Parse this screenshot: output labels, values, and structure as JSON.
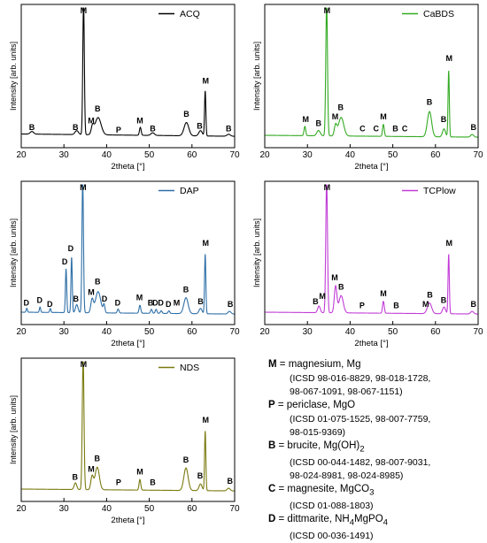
{
  "chart_data": [
    {
      "type": "line",
      "title": "",
      "legend": "ACQ",
      "legend_position": "top-right",
      "color": "#000000",
      "xlabel": "2theta [°]",
      "ylabel": "Intensity [arb. units]",
      "xlim": [
        20,
        70
      ],
      "xticks": [
        20,
        30,
        40,
        50,
        60,
        70
      ],
      "grid": false,
      "series": [
        {
          "name": "ACQ",
          "baseline": 0.05,
          "peaks": [
            {
              "x": 22.5,
              "y": 0.02,
              "w": 0.4
            },
            {
              "x": 33.0,
              "y": 0.03,
              "w": 0.4
            },
            {
              "x": 34.6,
              "y": 1.0,
              "w": 0.18
            },
            {
              "x": 36.7,
              "y": 0.06,
              "w": 0.3
            },
            {
              "x": 38.0,
              "y": 0.13,
              "w": 0.7
            },
            {
              "x": 47.9,
              "y": 0.06,
              "w": 0.2
            },
            {
              "x": 50.8,
              "y": 0.02,
              "w": 0.4
            },
            {
              "x": 58.7,
              "y": 0.1,
              "w": 0.55
            },
            {
              "x": 62.0,
              "y": 0.04,
              "w": 0.4
            },
            {
              "x": 63.1,
              "y": 0.34,
              "w": 0.15
            },
            {
              "x": 68.6,
              "y": 0.015,
              "w": 0.4
            }
          ]
        }
      ],
      "annotations": [
        {
          "text": "B",
          "x": 22.5,
          "y": 0.06
        },
        {
          "text": "B",
          "x": 32.7,
          "y": 0.06
        },
        {
          "text": "M",
          "x": 34.6,
          "y": 1.0
        },
        {
          "text": "M",
          "x": 36.4,
          "y": 0.11
        },
        {
          "text": "B",
          "x": 37.9,
          "y": 0.2
        },
        {
          "text": "P",
          "x": 42.8,
          "y": 0.04
        },
        {
          "text": "M",
          "x": 47.8,
          "y": 0.11
        },
        {
          "text": "B",
          "x": 50.8,
          "y": 0.05
        },
        {
          "text": "B",
          "x": 58.7,
          "y": 0.16
        },
        {
          "text": "B",
          "x": 61.8,
          "y": 0.07
        },
        {
          "text": "M",
          "x": 63.2,
          "y": 0.41
        },
        {
          "text": "B",
          "x": 68.6,
          "y": 0.05
        }
      ]
    },
    {
      "type": "line",
      "title": "",
      "legend": "CaBDS",
      "legend_position": "top-right",
      "color": "#33aa22",
      "xlabel": "2theta [°]",
      "ylabel": "Intensity [arb. units]",
      "xlim": [
        20,
        70
      ],
      "xticks": [
        20,
        30,
        40,
        50,
        60,
        70
      ],
      "grid": false,
      "series": [
        {
          "name": "CaBDS",
          "baseline": 0.04,
          "peaks": [
            {
              "x": 29.4,
              "y": 0.07,
              "w": 0.2
            },
            {
              "x": 32.6,
              "y": 0.04,
              "w": 0.4
            },
            {
              "x": 34.5,
              "y": 1.0,
              "w": 0.2
            },
            {
              "x": 36.6,
              "y": 0.08,
              "w": 0.3
            },
            {
              "x": 37.9,
              "y": 0.14,
              "w": 0.6
            },
            {
              "x": 47.8,
              "y": 0.09,
              "w": 0.2
            },
            {
              "x": 58.6,
              "y": 0.19,
              "w": 0.5
            },
            {
              "x": 62.0,
              "y": 0.06,
              "w": 0.35
            },
            {
              "x": 63.1,
              "y": 0.5,
              "w": 0.15
            },
            {
              "x": 68.6,
              "y": 0.02,
              "w": 0.35
            }
          ]
        }
      ],
      "annotations": [
        {
          "text": "M",
          "x": 29.6,
          "y": 0.12
        },
        {
          "text": "B",
          "x": 32.6,
          "y": 0.09
        },
        {
          "text": "M",
          "x": 34.6,
          "y": 1.0
        },
        {
          "text": "M",
          "x": 36.5,
          "y": 0.14
        },
        {
          "text": "B",
          "x": 37.8,
          "y": 0.21
        },
        {
          "text": "C",
          "x": 42.9,
          "y": 0.05
        },
        {
          "text": "C",
          "x": 46.1,
          "y": 0.05
        },
        {
          "text": "M",
          "x": 47.8,
          "y": 0.14
        },
        {
          "text": "B",
          "x": 50.6,
          "y": 0.05
        },
        {
          "text": "C",
          "x": 52.8,
          "y": 0.05
        },
        {
          "text": "B",
          "x": 58.6,
          "y": 0.25
        },
        {
          "text": "B",
          "x": 61.9,
          "y": 0.12
        },
        {
          "text": "M",
          "x": 63.2,
          "y": 0.58
        },
        {
          "text": "B",
          "x": 68.9,
          "y": 0.06
        }
      ]
    },
    {
      "type": "line",
      "title": "",
      "legend": "DAP",
      "legend_position": "top-right",
      "color": "#2e6fa7",
      "xlabel": "2theta [°]",
      "ylabel": "Intensity [arb. units]",
      "xlim": [
        20,
        70
      ],
      "xticks": [
        20,
        30,
        40,
        50,
        60,
        70
      ],
      "grid": false,
      "series": [
        {
          "name": "DAP",
          "baseline": 0.04,
          "peaks": [
            {
              "x": 21.3,
              "y": 0.03,
              "w": 0.15
            },
            {
              "x": 24.4,
              "y": 0.04,
              "w": 0.15
            },
            {
              "x": 26.8,
              "y": 0.03,
              "w": 0.15
            },
            {
              "x": 30.5,
              "y": 0.33,
              "w": 0.15
            },
            {
              "x": 31.8,
              "y": 0.42,
              "w": 0.15
            },
            {
              "x": 33.0,
              "y": 0.06,
              "w": 0.3
            },
            {
              "x": 34.4,
              "y": 1.0,
              "w": 0.18
            },
            {
              "x": 36.6,
              "y": 0.1,
              "w": 0.3
            },
            {
              "x": 38.0,
              "y": 0.16,
              "w": 0.6
            },
            {
              "x": 39.4,
              "y": 0.06,
              "w": 0.2
            },
            {
              "x": 42.7,
              "y": 0.03,
              "w": 0.2
            },
            {
              "x": 47.8,
              "y": 0.06,
              "w": 0.2
            },
            {
              "x": 50.5,
              "y": 0.03,
              "w": 0.2
            },
            {
              "x": 51.6,
              "y": 0.03,
              "w": 0.2
            },
            {
              "x": 52.8,
              "y": 0.02,
              "w": 0.2
            },
            {
              "x": 54.6,
              "y": 0.02,
              "w": 0.2
            },
            {
              "x": 58.6,
              "y": 0.12,
              "w": 0.5
            },
            {
              "x": 62.0,
              "y": 0.04,
              "w": 0.35
            },
            {
              "x": 63.1,
              "y": 0.45,
              "w": 0.15
            },
            {
              "x": 68.8,
              "y": 0.02,
              "w": 0.35
            }
          ]
        }
      ],
      "annotations": [
        {
          "text": "D",
          "x": 21.2,
          "y": 0.07
        },
        {
          "text": "D",
          "x": 24.3,
          "y": 0.09
        },
        {
          "text": "D",
          "x": 26.7,
          "y": 0.06
        },
        {
          "text": "D",
          "x": 30.2,
          "y": 0.38
        },
        {
          "text": "D",
          "x": 31.6,
          "y": 0.48
        },
        {
          "text": "B",
          "x": 32.8,
          "y": 0.1
        },
        {
          "text": "M",
          "x": 34.5,
          "y": 1.0
        },
        {
          "text": "M",
          "x": 36.4,
          "y": 0.15
        },
        {
          "text": "B",
          "x": 37.9,
          "y": 0.23
        },
        {
          "text": "D",
          "x": 39.5,
          "y": 0.1
        },
        {
          "text": "D",
          "x": 42.6,
          "y": 0.07
        },
        {
          "text": "M",
          "x": 47.7,
          "y": 0.11
        },
        {
          "text": "B",
          "x": 50.3,
          "y": 0.07
        },
        {
          "text": "D",
          "x": 51.4,
          "y": 0.07
        },
        {
          "text": "D",
          "x": 52.7,
          "y": 0.07
        },
        {
          "text": "D",
          "x": 54.5,
          "y": 0.06
        },
        {
          "text": "M",
          "x": 56.4,
          "y": 0.07
        },
        {
          "text": "B",
          "x": 58.6,
          "y": 0.17
        },
        {
          "text": "B",
          "x": 62.0,
          "y": 0.08
        },
        {
          "text": "M",
          "x": 63.2,
          "y": 0.52
        },
        {
          "text": "B",
          "x": 69.0,
          "y": 0.06
        }
      ]
    },
    {
      "type": "line",
      "title": "",
      "legend": "TCPlow",
      "legend_position": "top-right",
      "color": "#c13cd6",
      "xlabel": "2theta [°]",
      "ylabel": "Intensity [arb. units]",
      "xlim": [
        20,
        70
      ],
      "xticks": [
        20,
        30,
        40,
        50,
        60,
        70
      ],
      "grid": false,
      "series": [
        {
          "name": "TCPlow",
          "baseline": 0.04,
          "peaks": [
            {
              "x": 32.7,
              "y": 0.05,
              "w": 0.3
            },
            {
              "x": 34.5,
              "y": 1.0,
              "w": 0.2
            },
            {
              "x": 36.6,
              "y": 0.2,
              "w": 0.3
            },
            {
              "x": 37.9,
              "y": 0.13,
              "w": 0.5
            },
            {
              "x": 47.8,
              "y": 0.09,
              "w": 0.2
            },
            {
              "x": 58.6,
              "y": 0.08,
              "w": 0.5
            },
            {
              "x": 62.0,
              "y": 0.05,
              "w": 0.35
            },
            {
              "x": 63.1,
              "y": 0.45,
              "w": 0.15
            },
            {
              "x": 68.6,
              "y": 0.02,
              "w": 0.35
            }
          ]
        }
      ],
      "annotations": [
        {
          "text": "B",
          "x": 31.9,
          "y": 0.08
        },
        {
          "text": "M",
          "x": 33.5,
          "y": 0.12
        },
        {
          "text": "M",
          "x": 34.6,
          "y": 1.0
        },
        {
          "text": "M",
          "x": 36.4,
          "y": 0.26
        },
        {
          "text": "B",
          "x": 37.9,
          "y": 0.19
        },
        {
          "text": "P",
          "x": 42.8,
          "y": 0.05
        },
        {
          "text": "M",
          "x": 47.8,
          "y": 0.14
        },
        {
          "text": "B",
          "x": 50.8,
          "y": 0.05
        },
        {
          "text": "M",
          "x": 57.7,
          "y": 0.06
        },
        {
          "text": "B",
          "x": 58.7,
          "y": 0.13
        },
        {
          "text": "B",
          "x": 61.9,
          "y": 0.09
        },
        {
          "text": "M",
          "x": 63.2,
          "y": 0.52
        },
        {
          "text": "B",
          "x": 68.9,
          "y": 0.06
        }
      ]
    },
    {
      "type": "line",
      "title": "",
      "legend": "NDS",
      "legend_position": "top-right",
      "color": "#7a7a10",
      "xlabel": "2theta [°]",
      "ylabel": "Intensity [arb. units]",
      "xlim": [
        20,
        70
      ],
      "xticks": [
        20,
        30,
        40,
        50,
        60,
        70
      ],
      "grid": false,
      "series": [
        {
          "name": "NDS",
          "baseline": 0.04,
          "peaks": [
            {
              "x": 32.7,
              "y": 0.05,
              "w": 0.3
            },
            {
              "x": 34.5,
              "y": 1.0,
              "w": 0.2
            },
            {
              "x": 36.6,
              "y": 0.1,
              "w": 0.3
            },
            {
              "x": 37.8,
              "y": 0.17,
              "w": 0.5
            },
            {
              "x": 47.8,
              "y": 0.08,
              "w": 0.2
            },
            {
              "x": 58.6,
              "y": 0.17,
              "w": 0.5
            },
            {
              "x": 62.0,
              "y": 0.05,
              "w": 0.35
            },
            {
              "x": 63.1,
              "y": 0.45,
              "w": 0.15
            },
            {
              "x": 68.6,
              "y": 0.02,
              "w": 0.35
            }
          ]
        }
      ],
      "annotations": [
        {
          "text": "B",
          "x": 32.6,
          "y": 0.09
        },
        {
          "text": "M",
          "x": 34.6,
          "y": 1.0
        },
        {
          "text": "M",
          "x": 36.4,
          "y": 0.15
        },
        {
          "text": "B",
          "x": 37.8,
          "y": 0.23
        },
        {
          "text": "P",
          "x": 42.8,
          "y": 0.05
        },
        {
          "text": "M",
          "x": 47.8,
          "y": 0.13
        },
        {
          "text": "B",
          "x": 50.8,
          "y": 0.05
        },
        {
          "text": "B",
          "x": 58.6,
          "y": 0.22
        },
        {
          "text": "B",
          "x": 61.9,
          "y": 0.1
        },
        {
          "text": "M",
          "x": 63.2,
          "y": 0.52
        },
        {
          "text": "B",
          "x": 68.9,
          "y": 0.06
        }
      ]
    }
  ],
  "phase_legend": [
    {
      "symbol": "M",
      "name": "magnesium, Mg",
      "icsd": "(ICSD 98-016-8829, 98-018-1728,\n98-067-1091, 98-067-1151)"
    },
    {
      "symbol": "P",
      "name": "periclase, MgO",
      "icsd": "(ICSD 01-075-1525, 98-007-7759,\n98-015-9369)"
    },
    {
      "symbol": "B",
      "name": "brucite, Mg(OH)",
      "sub": "2",
      "icsd": "(ICSD 00-044-1482, 98-007-9031,\n98-024-8981, 98-024-8985)"
    },
    {
      "symbol": "C",
      "name": "magnesite, MgCO",
      "sub": "3",
      "icsd": "(ICSD 01-088-1803)"
    },
    {
      "symbol": "D",
      "name": "dittmarite, NH",
      "sub": "4",
      "name2": "MgPO",
      "sub2": "4",
      "icsd": "(ICSD 00-036-1491)"
    }
  ]
}
